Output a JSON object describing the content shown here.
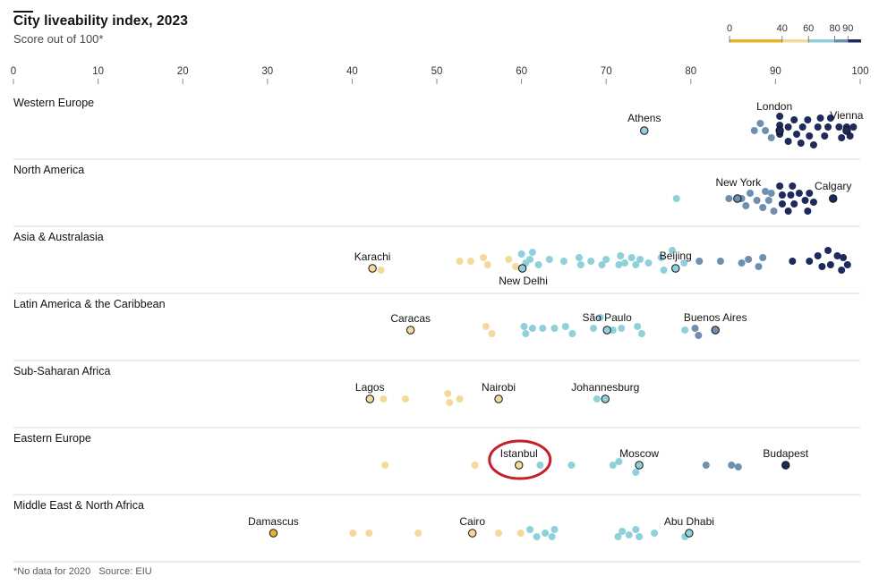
{
  "chart_data": {
    "type": "scatter",
    "title": "City liveability index, 2023",
    "subtitle": "Score out of 100*",
    "footnote": "*No data for 2020   Source: EIU",
    "xlim": [
      0,
      100
    ],
    "x_ticks": [
      0,
      10,
      20,
      30,
      40,
      50,
      60,
      70,
      80,
      90,
      100
    ],
    "legend": {
      "placement": "top-right",
      "labels": [
        "0",
        "40",
        "60",
        "80",
        "90"
      ],
      "bands": [
        {
          "from": 0,
          "to": 40,
          "color": "#e3b52e"
        },
        {
          "from": 40,
          "to": 60,
          "color": "#f5d99a"
        },
        {
          "from": 60,
          "to": 80,
          "color": "#8fd0db"
        },
        {
          "from": 80,
          "to": 90,
          "color": "#6f8fae"
        },
        {
          "from": 90,
          "to": 100,
          "color": "#1f2a5c"
        }
      ]
    },
    "groups": [
      {
        "name": "Western Europe",
        "cities": [
          {
            "name": "Athens",
            "score": 74.5
          },
          {
            "name": "London",
            "score": 90.5
          },
          {
            "name": "Vienna",
            "score": 98.4
          }
        ],
        "points": [
          [
            87.5,
            0
          ],
          [
            88.2,
            -8
          ],
          [
            88.8,
            0
          ],
          [
            89.5,
            8
          ],
          [
            90.5,
            -16
          ],
          [
            90.5,
            -6
          ],
          [
            90.5,
            4
          ],
          [
            91.5,
            12
          ],
          [
            91.5,
            -4
          ],
          [
            92.2,
            -12
          ],
          [
            92.5,
            4
          ],
          [
            93,
            14
          ],
          [
            93.2,
            -4
          ],
          [
            93.8,
            -12
          ],
          [
            94,
            6
          ],
          [
            94.5,
            16
          ],
          [
            95,
            -4
          ],
          [
            95.3,
            -14
          ],
          [
            95.8,
            6
          ],
          [
            96.2,
            -4
          ],
          [
            96.5,
            -14
          ],
          [
            97.5,
            -4
          ],
          [
            97.8,
            8
          ],
          [
            98.4,
            -4
          ],
          [
            98.8,
            6
          ],
          [
            99.2,
            -4
          ]
        ]
      },
      {
        "name": "North America",
        "cities": [
          {
            "name": "New York",
            "score": 85.5
          },
          {
            "name": "Calgary",
            "score": 96.8
          }
        ],
        "points": [
          [
            78.3,
            0
          ],
          [
            84.5,
            0
          ],
          [
            86,
            0
          ],
          [
            86.5,
            8
          ],
          [
            87,
            -6
          ],
          [
            87.8,
            2
          ],
          [
            88.5,
            10
          ],
          [
            88.8,
            -8
          ],
          [
            89.2,
            2
          ],
          [
            89.5,
            -6
          ],
          [
            89.8,
            14
          ],
          [
            90.5,
            -14
          ],
          [
            90.8,
            -4
          ],
          [
            90.8,
            6
          ],
          [
            91.5,
            14
          ],
          [
            91.8,
            -4
          ],
          [
            92,
            -14
          ],
          [
            92.2,
            6
          ],
          [
            92.8,
            -6
          ],
          [
            93.5,
            2
          ],
          [
            93.8,
            14
          ],
          [
            94,
            -6
          ],
          [
            94.5,
            4
          ]
        ]
      },
      {
        "name": "Asia & Australasia",
        "cities": [
          {
            "name": "Karachi",
            "score": 42.4
          },
          {
            "name": "New Delhi",
            "score": 60.1
          },
          {
            "name": "Beijing",
            "score": 78.2
          }
        ],
        "points": [
          [
            43.4,
            2
          ],
          [
            52.7,
            -8
          ],
          [
            54,
            -8
          ],
          [
            55.5,
            -12
          ],
          [
            56,
            -4
          ],
          [
            58.5,
            -10
          ],
          [
            59.3,
            -2
          ],
          [
            60,
            -16
          ],
          [
            60.5,
            -6
          ],
          [
            61,
            -10
          ],
          [
            61.3,
            -18
          ],
          [
            62,
            -4
          ],
          [
            63.3,
            -10
          ],
          [
            65,
            -8
          ],
          [
            66.8,
            -12
          ],
          [
            67,
            -4
          ],
          [
            68.2,
            -8
          ],
          [
            69.5,
            -4
          ],
          [
            70,
            -10
          ],
          [
            71.5,
            -4
          ],
          [
            71.7,
            -14
          ],
          [
            72.2,
            -6
          ],
          [
            73,
            -12
          ],
          [
            73.5,
            -4
          ],
          [
            74,
            -10
          ],
          [
            75,
            -6
          ],
          [
            76.5,
            -12
          ],
          [
            76.8,
            2
          ],
          [
            77.8,
            -20
          ],
          [
            79.2,
            -6
          ],
          [
            81,
            -8
          ],
          [
            83.5,
            -8
          ],
          [
            86,
            -6
          ],
          [
            86.8,
            -10
          ],
          [
            88,
            -2
          ],
          [
            88.5,
            -12
          ],
          [
            92,
            -8
          ],
          [
            94,
            -8
          ],
          [
            95,
            -14
          ],
          [
            95.5,
            -2
          ],
          [
            96.2,
            -20
          ],
          [
            96.5,
            -4
          ],
          [
            97.3,
            -14
          ],
          [
            97.8,
            2
          ],
          [
            98,
            -12
          ],
          [
            98.5,
            -4
          ]
        ]
      },
      {
        "name": "Latin America & the Caribbean",
        "cities": [
          {
            "name": "Caracas",
            "score": 46.9
          },
          {
            "name": "São Paulo",
            "score": 70.1
          },
          {
            "name": "Buenos Aires",
            "score": 82.9
          }
        ],
        "points": [
          [
            55.8,
            -4
          ],
          [
            56.5,
            4
          ],
          [
            60.3,
            -4
          ],
          [
            60.5,
            4
          ],
          [
            61.3,
            -2
          ],
          [
            62.5,
            -2
          ],
          [
            63.9,
            -2
          ],
          [
            65.2,
            -4
          ],
          [
            66,
            4
          ],
          [
            68.5,
            -2
          ],
          [
            69.3,
            -14
          ],
          [
            70.8,
            0
          ],
          [
            71.8,
            -2
          ],
          [
            73.7,
            -4
          ],
          [
            74.2,
            4
          ],
          [
            79.3,
            0
          ],
          [
            80.5,
            -2
          ],
          [
            80.9,
            6
          ]
        ]
      },
      {
        "name": "Sub-Saharan Africa",
        "cities": [
          {
            "name": "Lagos",
            "score": 42.1
          },
          {
            "name": "Nairobi",
            "score": 57.3
          },
          {
            "name": "Johannesburg",
            "score": 69.9
          }
        ],
        "points": [
          [
            43.7,
            0
          ],
          [
            46.3,
            0
          ],
          [
            51.3,
            -6
          ],
          [
            51.5,
            4
          ],
          [
            52.7,
            0
          ],
          [
            68.9,
            0
          ]
        ]
      },
      {
        "name": "Eastern Europe",
        "cities": [
          {
            "name": "Istanbul",
            "score": 59.7
          },
          {
            "name": "Moscow",
            "score": 73.9
          },
          {
            "name": "Budapest",
            "score": 91.2
          }
        ],
        "points": [
          [
            43.9,
            0
          ],
          [
            54.5,
            0
          ],
          [
            62.2,
            0
          ],
          [
            65.9,
            0
          ],
          [
            70.8,
            0
          ],
          [
            71.5,
            -4
          ],
          [
            73.5,
            8
          ],
          [
            81.8,
            0
          ],
          [
            84.8,
            0
          ],
          [
            85.6,
            2
          ]
        ]
      },
      {
        "name": "Middle East & North Africa",
        "cities": [
          {
            "name": "Damascus",
            "score": 30.7
          },
          {
            "name": "Cairo",
            "score": 54.2
          },
          {
            "name": "Abu Dhabi",
            "score": 79.8
          }
        ],
        "points": [
          [
            40.1,
            0
          ],
          [
            42,
            0
          ],
          [
            47.8,
            0
          ],
          [
            57.3,
            0
          ],
          [
            59.9,
            0
          ],
          [
            61,
            -4
          ],
          [
            61.8,
            4
          ],
          [
            62.8,
            0
          ],
          [
            63.6,
            4
          ],
          [
            63.9,
            -4
          ],
          [
            71.4,
            4
          ],
          [
            71.9,
            -2
          ],
          [
            72.7,
            2
          ],
          [
            73.5,
            -4
          ],
          [
            73.9,
            4
          ],
          [
            75.7,
            0
          ],
          [
            79.3,
            4
          ]
        ]
      }
    ],
    "highlight": "Istanbul"
  }
}
